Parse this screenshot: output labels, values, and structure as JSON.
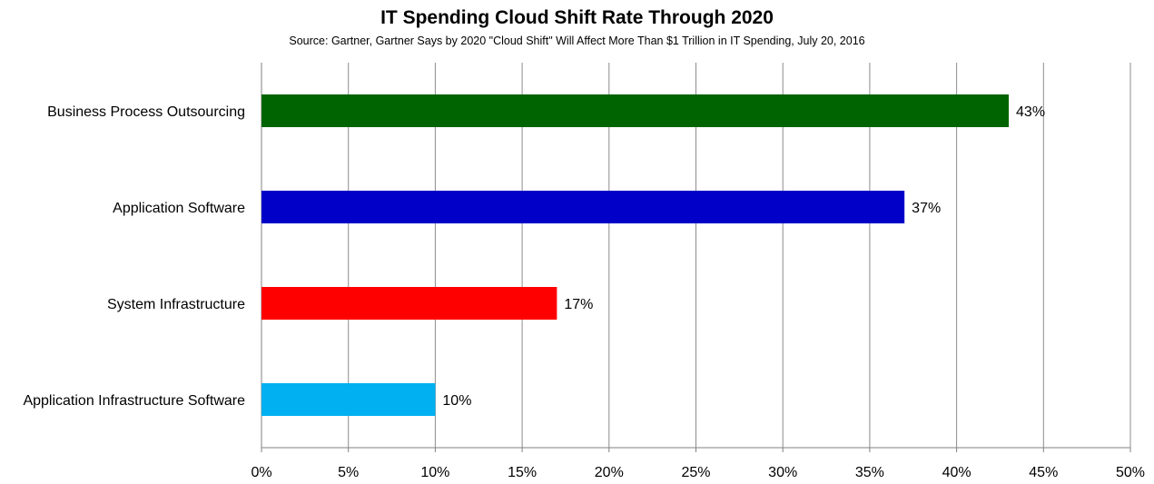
{
  "chart_data": {
    "type": "bar",
    "orientation": "horizontal",
    "title": "IT Spending Cloud Shift Rate Through 2020",
    "subtitle": "Source: Gartner, Gartner Says by 2020  \"Cloud Shift\" Will Affect More Than $1 Trillion in IT Spending, July 20, 2016",
    "categories": [
      "Business Process Outsourcing",
      "Application Software",
      "System Infrastructure",
      "Application Infrastructure Software"
    ],
    "values": [
      43,
      37,
      17,
      10
    ],
    "value_labels": [
      "43%",
      "37%",
      "17%",
      "10%"
    ],
    "colors": [
      "#006400",
      "#0000c8",
      "#ff0000",
      "#00b0f0"
    ],
    "xlim": [
      0,
      50
    ],
    "xticks": [
      0,
      5,
      10,
      15,
      20,
      25,
      30,
      35,
      40,
      45,
      50
    ],
    "xtick_labels": [
      "0%",
      "5%",
      "10%",
      "15%",
      "20%",
      "25%",
      "30%",
      "35%",
      "40%",
      "45%",
      "50%"
    ],
    "grid": "vertical",
    "legend": "none"
  }
}
